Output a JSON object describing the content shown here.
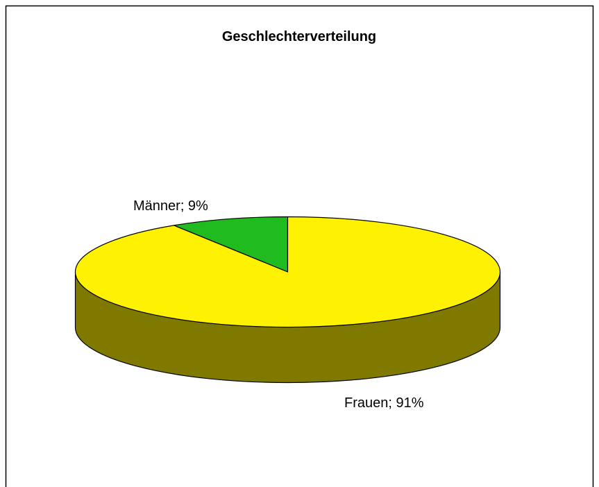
{
  "chart_data": {
    "type": "pie",
    "title": "Geschlechterverteilung",
    "values": [
      9,
      91
    ],
    "value_labels": [
      "Männer; 9%",
      "Frauen; 91%"
    ],
    "colors": [
      "#1fbb1f",
      "#fff200"
    ],
    "style": "3d"
  }
}
